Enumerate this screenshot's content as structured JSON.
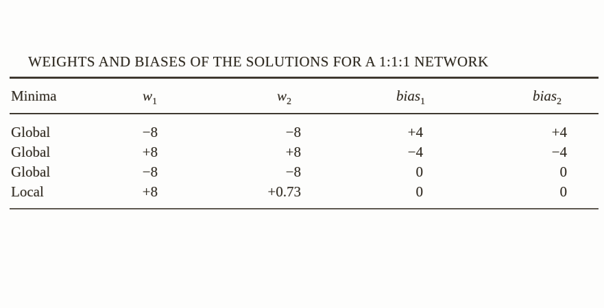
{
  "document": {
    "title": "WEIGHTS AND BIASES OF THE SOLUTIONS FOR A 1:1:1 NETWORK",
    "table": {
      "columns": [
        {
          "label": "Minima"
        },
        {
          "label": "w",
          "sub": "1"
        },
        {
          "label": "w",
          "sub": "2"
        },
        {
          "label": "bias",
          "sub": "1"
        },
        {
          "label": "bias",
          "sub": "2"
        }
      ],
      "rows": [
        {
          "minima": "Global",
          "w1": "−8",
          "w2": "−8",
          "bias1": "+4",
          "bias2": "+4"
        },
        {
          "minima": "Global",
          "w1": "+8",
          "w2": "+8",
          "bias1": "−4",
          "bias2": "−4"
        },
        {
          "minima": "Global",
          "w1": "−8",
          "w2": "−8",
          "bias1": "0",
          "bias2": "0"
        },
        {
          "minima": "Local",
          "w1": "+8",
          "w2": "+0.73",
          "bias1": "0",
          "bias2": "0"
        }
      ]
    }
  },
  "colors": {
    "text": "#332d24",
    "rule": "#3e382f",
    "background": "#fdfdfc"
  }
}
